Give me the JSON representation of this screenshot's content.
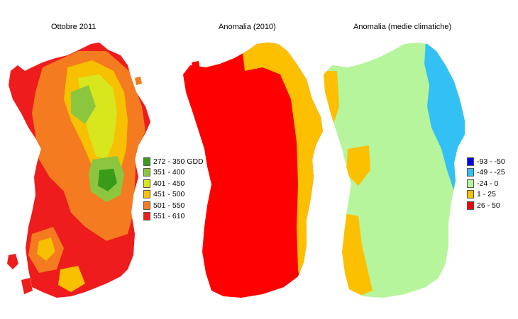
{
  "maps": [
    {
      "title": "Ottobre 2011",
      "legend": [
        {
          "label": "272 - 350 GDD",
          "color": "#3a9a1a"
        },
        {
          "label": "351 - 400",
          "color": "#8cc63f"
        },
        {
          "label": "401 - 450",
          "color": "#d8e61e"
        },
        {
          "label": "451 - 500",
          "color": "#f7c000"
        },
        {
          "label": "501 - 550",
          "color": "#f47b20"
        },
        {
          "label": "551 - 610",
          "color": "#ee1c1c"
        }
      ]
    },
    {
      "title": "Anomalia (2010)",
      "legend": []
    },
    {
      "title": "Anomalia (medie climatiche)",
      "legend": [
        {
          "label": "-93 - -50",
          "color": "#0000ff"
        },
        {
          "label": "-49 - -25",
          "color": "#33c0f5"
        },
        {
          "label": "-24 - 0",
          "color": "#b6f59c"
        },
        {
          "label": "1 - 25",
          "color": "#fdc000"
        },
        {
          "label": "26 - 50",
          "color": "#ff0000"
        }
      ]
    }
  ]
}
